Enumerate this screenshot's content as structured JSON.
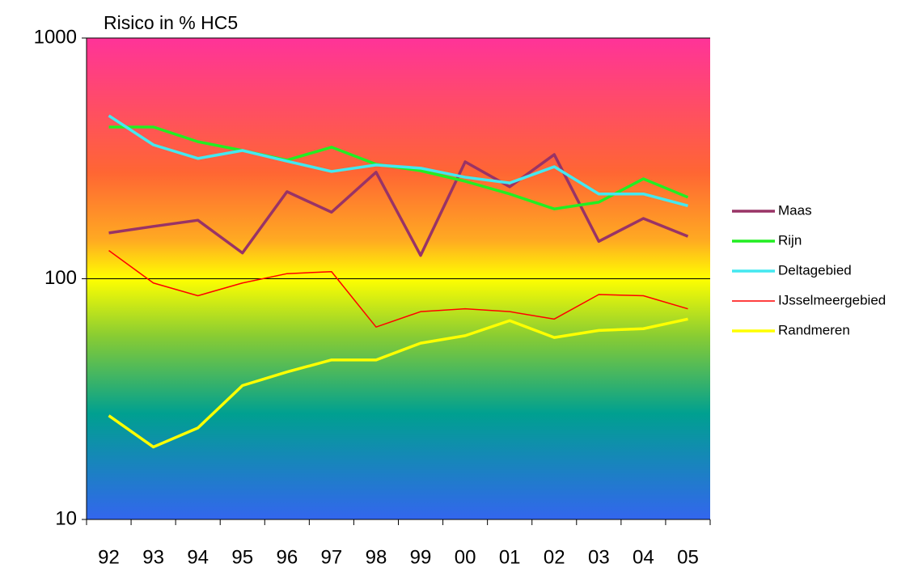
{
  "chart_data": {
    "type": "line",
    "title": "Risico in % HC5",
    "categories": [
      "92",
      "93",
      "94",
      "95",
      "96",
      "97",
      "98",
      "99",
      "00",
      "01",
      "02",
      "03",
      "04",
      "05"
    ],
    "series": [
      {
        "name": "Maas",
        "color": "#993366",
        "values": [
          155,
          165,
          175,
          128,
          230,
          189,
          277,
          125,
          306,
          241,
          328,
          143,
          178,
          150
        ]
      },
      {
        "name": "Rijn",
        "color": "#22ee22",
        "values": [
          427,
          427,
          371,
          341,
          311,
          352,
          299,
          281,
          254,
          225,
          195,
          208,
          260,
          218
        ]
      },
      {
        "name": "Deltagebied",
        "color": "#44e8f0",
        "values": [
          476,
          360,
          316,
          341,
          308,
          279,
          297,
          288,
          264,
          250,
          292,
          225,
          225,
          201
        ]
      },
      {
        "name": "IJsselmeergebied",
        "color": "#ff0000",
        "values": [
          131,
          96,
          85,
          96,
          105,
          107,
          63,
          73,
          75,
          73,
          68,
          86,
          85,
          75
        ]
      },
      {
        "name": "Randmeren",
        "color": "#ffff00",
        "values": [
          27,
          20,
          24,
          36,
          41,
          46,
          46,
          54,
          58,
          67,
          57,
          61,
          62,
          68
        ]
      }
    ],
    "ylim": [
      10,
      1000
    ],
    "yticks": [
      10,
      100,
      1000
    ],
    "log_y": true,
    "grid": true,
    "legend": "right"
  }
}
